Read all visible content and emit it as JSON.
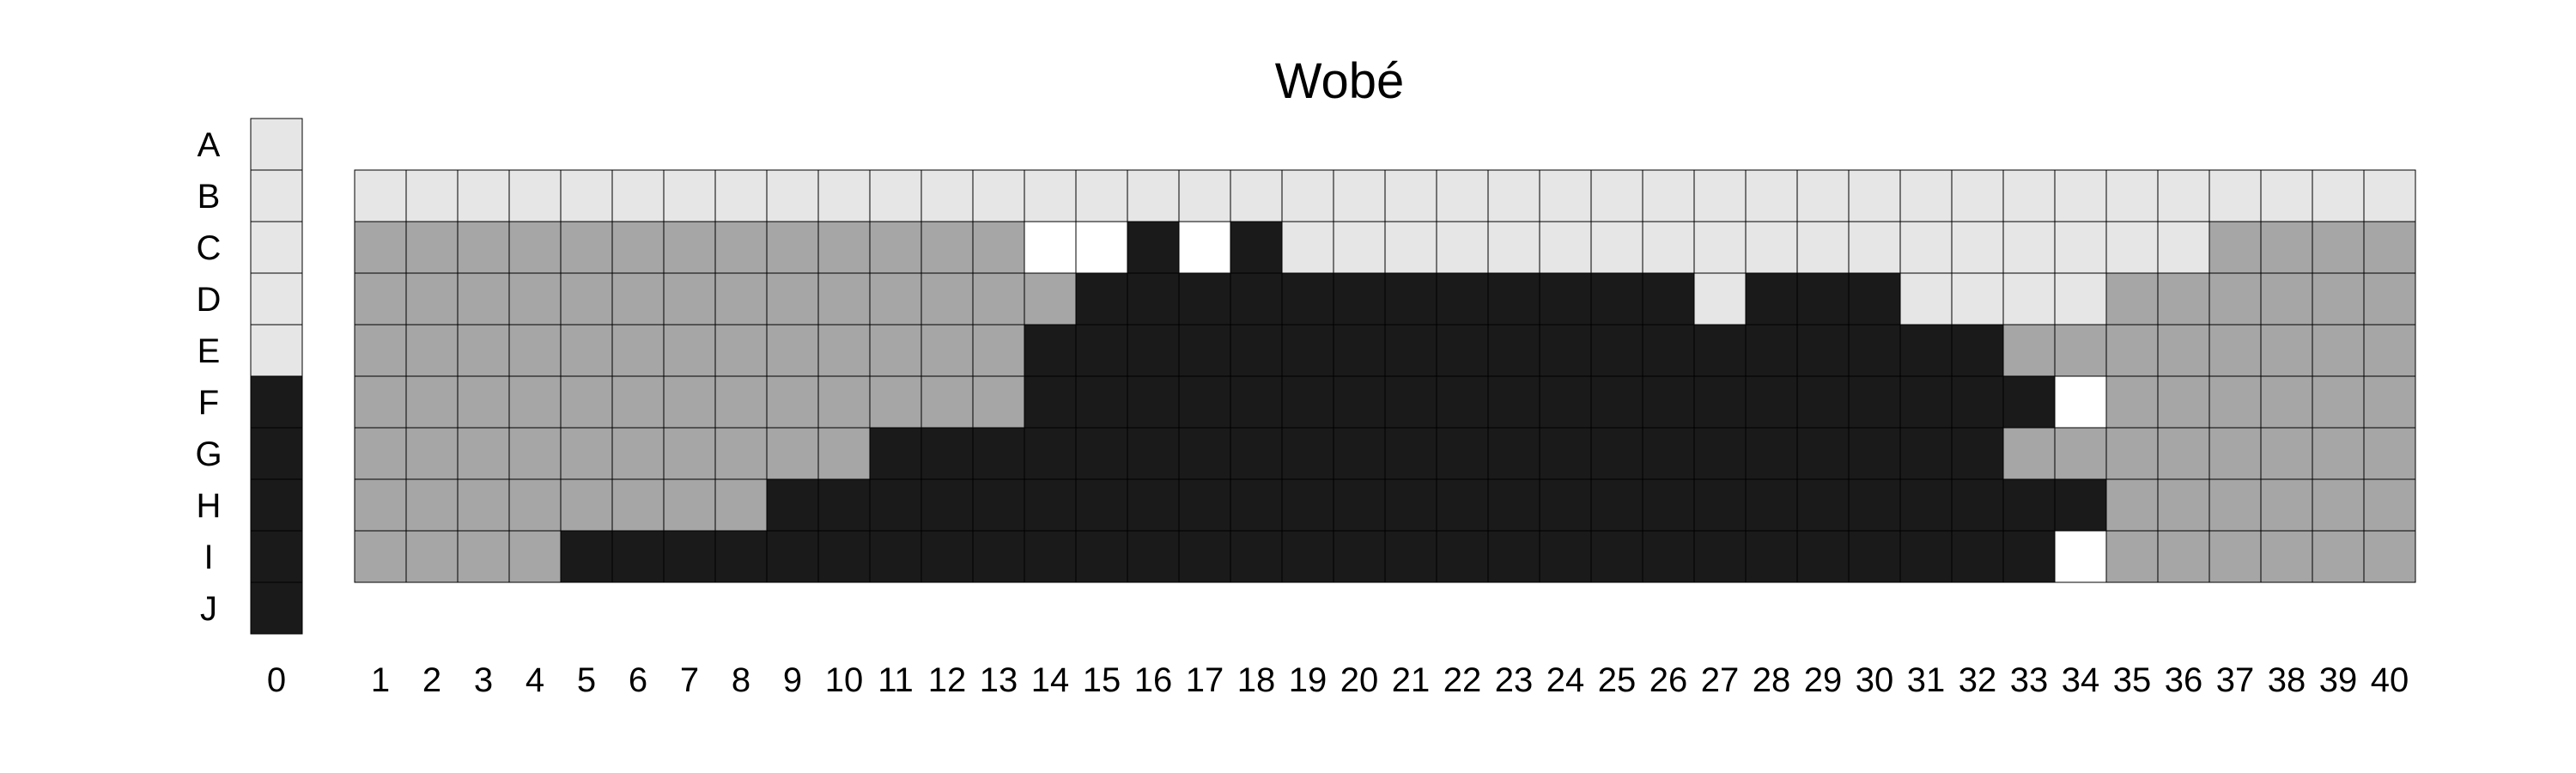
{
  "chart_data": {
    "type": "heatmap",
    "title": "Wobé",
    "row_labels": [
      "A",
      "B",
      "C",
      "D",
      "E",
      "F",
      "G",
      "H",
      "I",
      "J"
    ],
    "column_labels": [
      "0",
      "1",
      "2",
      "3",
      "4",
      "5",
      "6",
      "7",
      "8",
      "9",
      "10",
      "11",
      "12",
      "13",
      "14",
      "15",
      "16",
      "17",
      "18",
      "19",
      "20",
      "21",
      "22",
      "23",
      "24",
      "25",
      "26",
      "27",
      "28",
      "29",
      "30",
      "31",
      "32",
      "33",
      "34",
      "35",
      "36",
      "37",
      "38",
      "39",
      "40"
    ],
    "legend": {
      "0": "empty",
      "1": "light grey",
      "2": "mid grey",
      "3": "black"
    },
    "colors": {
      "0": "#ffffff",
      "1": "#e6e6e6",
      "2": "#a6a6a6",
      "3": "#1a1a1a"
    },
    "reference_column": {
      "label": "0",
      "rows": [
        "A",
        "B",
        "C",
        "D",
        "E",
        "F",
        "G",
        "H",
        "I",
        "J"
      ],
      "values": [
        1,
        1,
        1,
        1,
        1,
        3,
        3,
        3,
        3,
        3
      ]
    },
    "grid_rows": [
      "B",
      "C",
      "D",
      "E",
      "F",
      "G",
      "H",
      "I"
    ],
    "values": [
      [
        1,
        1,
        1,
        1,
        1,
        1,
        1,
        1,
        1,
        1,
        1,
        1,
        1,
        1,
        1,
        1,
        1,
        1,
        1,
        1,
        1,
        1,
        1,
        1,
        1,
        1,
        1,
        1,
        1,
        1,
        1,
        1,
        1,
        1,
        1,
        1,
        1,
        1,
        1,
        1
      ],
      [
        2,
        2,
        2,
        2,
        2,
        2,
        2,
        2,
        2,
        2,
        2,
        2,
        2,
        0,
        0,
        3,
        0,
        3,
        1,
        1,
        1,
        1,
        1,
        1,
        1,
        1,
        1,
        1,
        1,
        1,
        1,
        1,
        1,
        1,
        1,
        1,
        2,
        2,
        2,
        2
      ],
      [
        2,
        2,
        2,
        2,
        2,
        2,
        2,
        2,
        2,
        2,
        2,
        2,
        2,
        2,
        3,
        3,
        3,
        3,
        3,
        3,
        3,
        3,
        3,
        3,
        3,
        3,
        1,
        3,
        3,
        3,
        1,
        1,
        1,
        1,
        2,
        2,
        2,
        2,
        2,
        2
      ],
      [
        2,
        2,
        2,
        2,
        2,
        2,
        2,
        2,
        2,
        2,
        2,
        2,
        2,
        3,
        3,
        3,
        3,
        3,
        3,
        3,
        3,
        3,
        3,
        3,
        3,
        3,
        3,
        3,
        3,
        3,
        3,
        3,
        2,
        2,
        2,
        2,
        2,
        2,
        2,
        2
      ],
      [
        2,
        2,
        2,
        2,
        2,
        2,
        2,
        2,
        2,
        2,
        2,
        2,
        2,
        3,
        3,
        3,
        3,
        3,
        3,
        3,
        3,
        3,
        3,
        3,
        3,
        3,
        3,
        3,
        3,
        3,
        3,
        3,
        3,
        0,
        2,
        2,
        2,
        2,
        2,
        2
      ],
      [
        2,
        2,
        2,
        2,
        2,
        2,
        2,
        2,
        2,
        2,
        3,
        3,
        3,
        3,
        3,
        3,
        3,
        3,
        3,
        3,
        3,
        3,
        3,
        3,
        3,
        3,
        3,
        3,
        3,
        3,
        3,
        3,
        2,
        2,
        2,
        2,
        2,
        2,
        2,
        2
      ],
      [
        2,
        2,
        2,
        2,
        2,
        2,
        2,
        2,
        3,
        3,
        3,
        3,
        3,
        3,
        3,
        3,
        3,
        3,
        3,
        3,
        3,
        3,
        3,
        3,
        3,
        3,
        3,
        3,
        3,
        3,
        3,
        3,
        3,
        3,
        2,
        2,
        2,
        2,
        2,
        2
      ],
      [
        2,
        2,
        2,
        2,
        3,
        3,
        3,
        3,
        3,
        3,
        3,
        3,
        3,
        3,
        3,
        3,
        3,
        3,
        3,
        3,
        3,
        3,
        3,
        3,
        3,
        3,
        3,
        3,
        3,
        3,
        3,
        3,
        3,
        0,
        2,
        2,
        2,
        2,
        2,
        2
      ]
    ]
  }
}
